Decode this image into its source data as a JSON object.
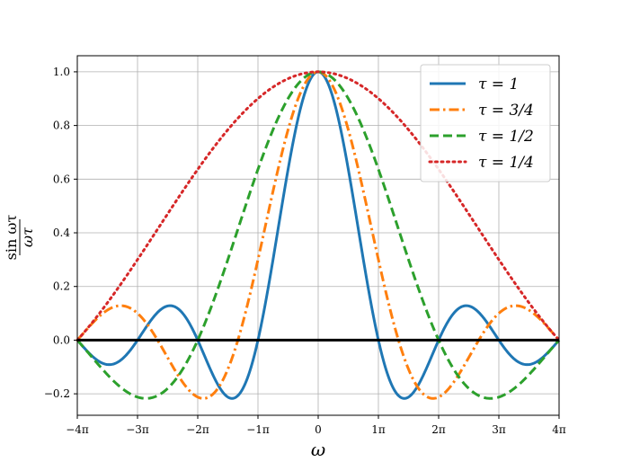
{
  "chart_data": {
    "type": "line",
    "title": "",
    "xlabel": "ω",
    "ylabel_numerator": "sin ωτ",
    "ylabel_denominator": "ωτ",
    "xlim": [
      -12.566370614359172,
      12.566370614359172
    ],
    "ylim": [
      -0.28,
      1.06
    ],
    "grid": true,
    "legend_position": "top-right",
    "xticks": [
      {
        "value": -12.566370614359172,
        "label": "−4π"
      },
      {
        "value": -9.42477796076938,
        "label": "−3π"
      },
      {
        "value": -6.283185307179586,
        "label": "−2π"
      },
      {
        "value": -3.141592653589793,
        "label": "−1π"
      },
      {
        "value": 0,
        "label": "0"
      },
      {
        "value": 3.141592653589793,
        "label": "1π"
      },
      {
        "value": 6.283185307179586,
        "label": "2π"
      },
      {
        "value": 9.42477796076938,
        "label": "3π"
      },
      {
        "value": 12.566370614359172,
        "label": "4π"
      }
    ],
    "yticks": [
      {
        "value": -0.2,
        "label": "−0.2"
      },
      {
        "value": 0.0,
        "label": "0.0"
      },
      {
        "value": 0.2,
        "label": "0.2"
      },
      {
        "value": 0.4,
        "label": "0.4"
      },
      {
        "value": 0.6,
        "label": "0.6"
      },
      {
        "value": 0.8,
        "label": "0.8"
      },
      {
        "value": 1.0,
        "label": "1.0"
      }
    ],
    "function": "sin(ωτ)/(ωτ)",
    "series": [
      {
        "name": "τ = 1",
        "tau": 1,
        "color": "#1f77b4",
        "style": "solid"
      },
      {
        "name": "τ = 3/4",
        "tau": 0.75,
        "color": "#ff7f0e",
        "style": "dashdot"
      },
      {
        "name": "τ = 1/2",
        "tau": 0.5,
        "color": "#2ca02c",
        "style": "dashed"
      },
      {
        "name": "τ = 1/4",
        "tau": 0.25,
        "color": "#d62728",
        "style": "dotted"
      }
    ],
    "baseline": {
      "y": 0,
      "color": "#000000"
    }
  }
}
